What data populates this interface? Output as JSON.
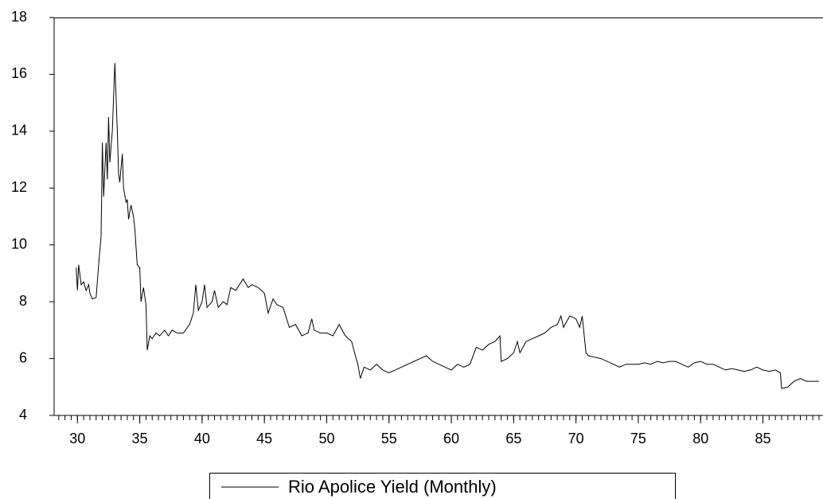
{
  "chart_data": {
    "type": "line",
    "x": [
      29.9,
      30.0,
      30.1,
      30.3,
      30.5,
      30.7,
      30.9,
      31.0,
      31.2,
      31.5,
      31.7,
      31.9,
      32.0,
      32.1,
      32.3,
      32.4,
      32.5,
      32.6,
      32.8,
      33.0,
      33.2,
      33.3,
      33.4,
      33.6,
      33.7,
      33.9,
      34.0,
      34.1,
      34.3,
      34.5,
      34.6,
      34.8,
      35.0,
      35.1,
      35.3,
      35.5,
      35.6,
      35.8,
      36.0,
      36.3,
      36.6,
      37.0,
      37.3,
      37.6,
      38.0,
      38.5,
      39.0,
      39.3,
      39.5,
      39.7,
      40.0,
      40.2,
      40.4,
      40.8,
      41.0,
      41.3,
      41.7,
      42.0,
      42.3,
      42.7,
      43.0,
      43.3,
      43.7,
      44.0,
      44.5,
      45.0,
      45.3,
      45.7,
      46.0,
      46.5,
      47.0,
      47.5,
      48.0,
      48.5,
      48.8,
      49.0,
      49.5,
      50.0,
      50.5,
      51.0,
      51.5,
      52.0,
      52.3,
      52.5,
      52.7,
      53.0,
      53.5,
      54.0,
      54.5,
      55.0,
      55.5,
      56.0,
      56.5,
      57.0,
      57.5,
      58.0,
      58.5,
      59.0,
      59.5,
      60.0,
      60.5,
      61.0,
      61.5,
      62.0,
      62.5,
      63.0,
      63.5,
      63.9,
      64.0,
      64.5,
      65.0,
      65.3,
      65.5,
      66.0,
      66.5,
      67.0,
      67.5,
      68.0,
      68.5,
      68.8,
      69.0,
      69.5,
      70.0,
      70.3,
      70.5,
      70.8,
      71.0,
      71.5,
      72.0,
      72.5,
      73.0,
      73.5,
      74.0,
      74.5,
      75.0,
      75.5,
      76.0,
      76.5,
      77.0,
      77.5,
      78.0,
      78.5,
      79.0,
      79.5,
      80.0,
      80.5,
      81.0,
      81.5,
      82.0,
      82.5,
      83.0,
      83.5,
      84.0,
      84.5,
      85.0,
      85.5,
      86.0,
      86.4,
      86.5,
      87.0,
      87.5,
      88.0,
      88.5,
      89.0,
      89.5
    ],
    "series": [
      {
        "name": "Rio Apolice Yield (Monthly)",
        "color": "#000000",
        "values": [
          9.2,
          8.4,
          9.3,
          8.6,
          8.7,
          8.4,
          8.6,
          8.3,
          8.1,
          8.15,
          9.3,
          10.3,
          13.6,
          11.7,
          13.6,
          12.3,
          14.5,
          12.9,
          14.0,
          16.4,
          14.0,
          12.5,
          12.2,
          13.2,
          12.0,
          11.5,
          11.6,
          10.9,
          11.4,
          11.0,
          10.6,
          9.3,
          9.2,
          8.0,
          8.5,
          7.9,
          6.3,
          6.8,
          6.7,
          6.9,
          6.8,
          7.0,
          6.8,
          7.0,
          6.9,
          6.9,
          7.2,
          7.6,
          8.6,
          7.7,
          8.0,
          8.6,
          7.8,
          8.0,
          8.4,
          7.8,
          8.0,
          7.9,
          8.5,
          8.4,
          8.6,
          8.8,
          8.5,
          8.6,
          8.5,
          8.3,
          7.6,
          8.1,
          7.9,
          7.8,
          7.1,
          7.2,
          6.8,
          6.9,
          7.4,
          7.0,
          6.9,
          6.9,
          6.8,
          7.2,
          6.8,
          6.6,
          6.1,
          5.8,
          5.3,
          5.7,
          5.6,
          5.8,
          5.6,
          5.5,
          5.6,
          5.7,
          5.8,
          5.9,
          6.0,
          6.1,
          5.9,
          5.8,
          5.7,
          5.6,
          5.8,
          5.7,
          5.8,
          6.4,
          6.3,
          6.5,
          6.6,
          6.8,
          5.9,
          6.0,
          6.2,
          6.6,
          6.2,
          6.6,
          6.7,
          6.8,
          6.9,
          7.1,
          7.2,
          7.5,
          7.1,
          7.5,
          7.4,
          7.1,
          7.5,
          6.2,
          6.1,
          6.05,
          6.0,
          5.9,
          5.8,
          5.7,
          5.8,
          5.8,
          5.8,
          5.85,
          5.8,
          5.9,
          5.85,
          5.9,
          5.9,
          5.8,
          5.7,
          5.85,
          5.9,
          5.8,
          5.8,
          5.7,
          5.6,
          5.65,
          5.6,
          5.55,
          5.6,
          5.7,
          5.6,
          5.55,
          5.6,
          5.5,
          4.95,
          5.0,
          5.2,
          5.3,
          5.2,
          5.2,
          5.2
        ]
      }
    ],
    "xlim": [
      28.13,
      89.82
    ],
    "xticks": [
      30,
      35,
      40,
      45,
      50,
      55,
      60,
      65,
      70,
      75,
      80,
      85
    ],
    "xminorticks": [
      28.5,
      29,
      29.5,
      30,
      30.5,
      31,
      31.5,
      32,
      32.5,
      33,
      33.5,
      34,
      34.5,
      35,
      35.5,
      36,
      36.5,
      37,
      37.5,
      38,
      38.5,
      39,
      39.5,
      40,
      40.5,
      41,
      41.5,
      42,
      42.5,
      43,
      43.5,
      44,
      44.5,
      45,
      45.5,
      46,
      46.5,
      47,
      47.5,
      48,
      48.5,
      49,
      49.5,
      50,
      50.5,
      51,
      51.5,
      52,
      52.5,
      53,
      53.5,
      54,
      54.5,
      55,
      55.5,
      56,
      56.5,
      57,
      57.5,
      58,
      58.5,
      59,
      59.5,
      60,
      60.5,
      61,
      61.5,
      62,
      62.5,
      63,
      63.5,
      64,
      64.5,
      65,
      65.5,
      66,
      66.5,
      67,
      67.5,
      68,
      68.5,
      69,
      69.5,
      70,
      70.5,
      71,
      71.5,
      72,
      72.5,
      73,
      73.5,
      74,
      74.5,
      75,
      75.5,
      76,
      76.5,
      77,
      77.5,
      78,
      78.5,
      79,
      79.5,
      80,
      80.5,
      81,
      81.5,
      82,
      82.5,
      83,
      83.5,
      84,
      84.5,
      85,
      85.5,
      86,
      86.5,
      87,
      87.5,
      88,
      88.5,
      89,
      89.5
    ],
    "ylim": [
      4,
      18
    ],
    "yticks": [
      4,
      6,
      8,
      10,
      12,
      14,
      16,
      18
    ],
    "legend": "bottom"
  }
}
